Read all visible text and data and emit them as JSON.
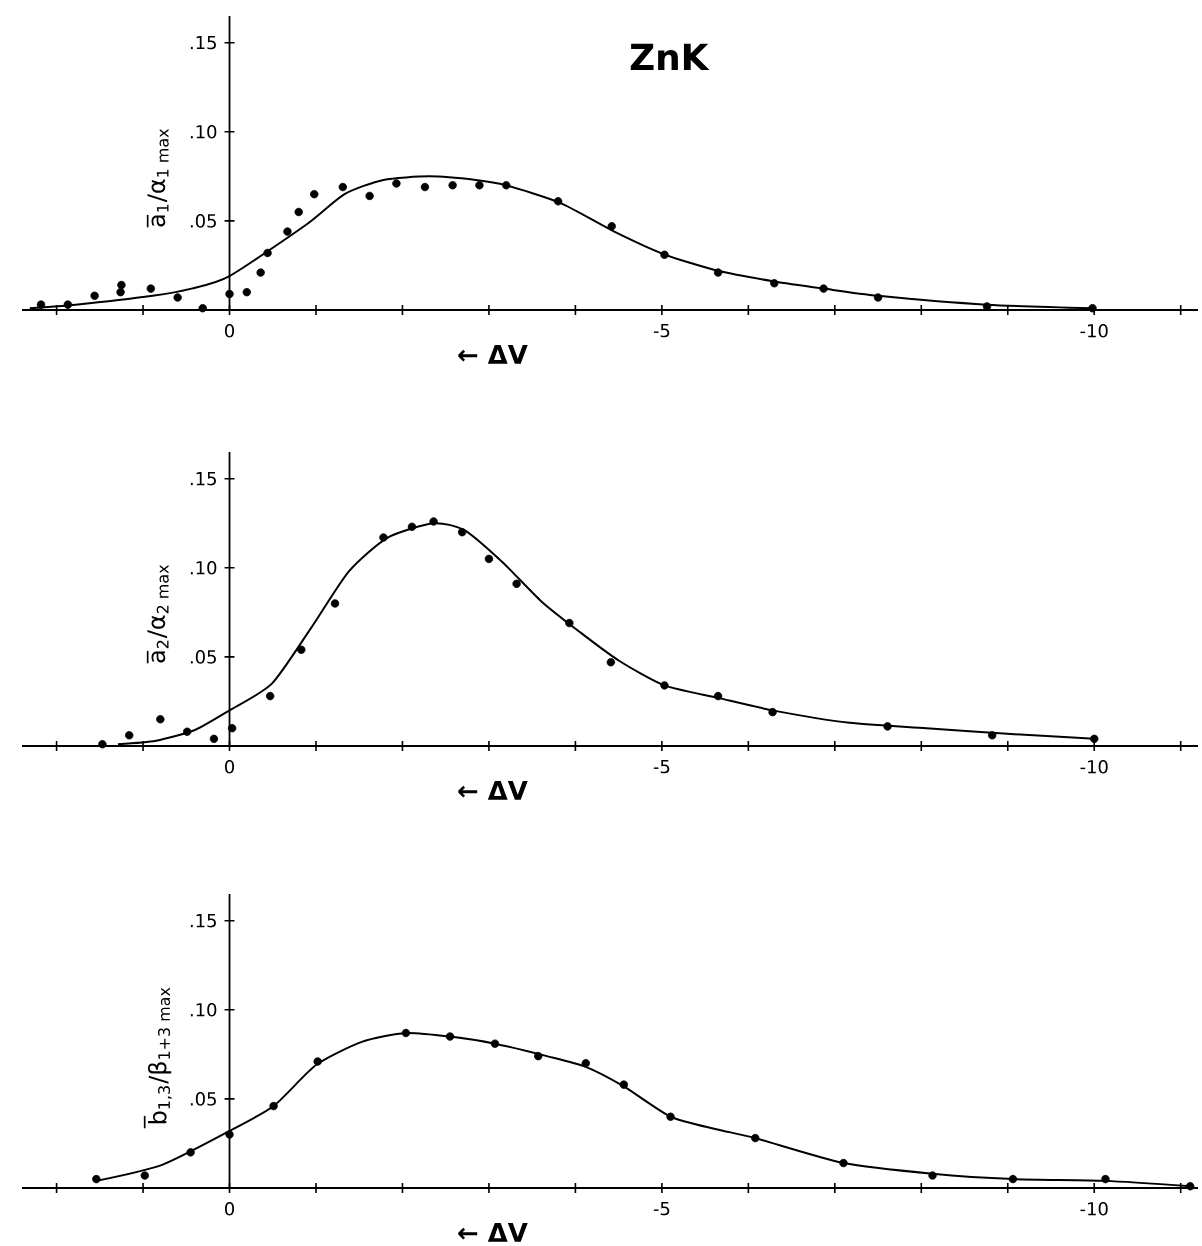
{
  "chart_data": [
    {
      "type": "scatter",
      "title": "ZnK",
      "xlabel": "← ΔV",
      "ylabel": "a̅$_{1}$/α$_{1 max}$",
      "xlim": [
        2.4,
        -11.2
      ],
      "ylim": [
        0,
        0.165
      ],
      "xticks": [
        {
          "value": 2,
          "label": null
        },
        {
          "value": 1,
          "label": null
        },
        0,
        {
          "value": -1,
          "label": null
        },
        {
          "value": -2,
          "label": null
        },
        {
          "value": -3,
          "label": null
        },
        {
          "value": -4,
          "label": null
        },
        -5,
        {
          "value": -6,
          "label": null
        },
        {
          "value": -7,
          "label": null
        },
        {
          "value": -8,
          "label": null
        },
        {
          "value": -9,
          "label": null
        },
        -10,
        {
          "value": -11,
          "label": null
        }
      ],
      "yticks": [
        {
          "value": 0.05,
          "label": ".05"
        },
        {
          "value": 0.1,
          "label": ".10"
        },
        {
          "value": 0.15,
          "label": ".15"
        }
      ],
      "series": [
        {
          "type": "scatter",
          "marker": "circle",
          "color": "#000000",
          "x": [
            2.18,
            1.87,
            1.56,
            1.26,
            1.25,
            0.91,
            0.6,
            0.31,
            0,
            -0.2,
            -0.36,
            -0.44,
            -0.67,
            -0.8,
            -0.98,
            -1.31,
            -1.62,
            -1.93,
            -2.26,
            -2.58,
            -2.89,
            -3.2,
            -3.8,
            -4.42,
            -5.03,
            -5.65,
            -6.3,
            -6.87,
            -7.5,
            -8.76,
            -9.98
          ],
          "values": [
            0.003,
            0.003,
            0.008,
            0.01,
            0.014,
            0.012,
            0.007,
            0.001,
            0.009,
            0.01,
            0.021,
            0.032,
            0.044,
            0.055,
            0.065,
            0.069,
            0.064,
            0.071,
            0.069,
            0.07,
            0.07,
            0.07,
            0.061,
            0.047,
            0.031,
            0.021,
            0.015,
            0.012,
            0.007,
            0.002,
            0.001
          ]
        },
        {
          "type": "line",
          "marker": "none",
          "color": "#000000",
          "x": [
            2.31,
            1.78,
            0.89,
            0.44,
            0,
            -0.89,
            -1.33,
            -1.78,
            -2.31,
            -2.85,
            -3.2,
            -3.83,
            -4.45,
            -5.04,
            -5.65,
            -6.3,
            -6.87,
            -7.5,
            -8.76,
            -9.98
          ],
          "values": [
            0.001,
            0.003,
            0.008,
            0.012,
            0.019,
            0.048,
            0.065,
            0.073,
            0.075,
            0.073,
            0.07,
            0.06,
            0.044,
            0.031,
            0.022,
            0.016,
            0.012,
            0.008,
            0.003,
            0.001
          ]
        }
      ]
    },
    {
      "type": "scatter",
      "xlabel": "← ΔV",
      "ylabel": "a̅$_{2}$/α$_{2 max}$",
      "xlim": [
        2.4,
        -11.2
      ],
      "ylim": [
        0,
        0.165
      ],
      "xticks": [
        {
          "value": 2,
          "label": null
        },
        {
          "value": 1,
          "label": null
        },
        0,
        {
          "value": -1,
          "label": null
        },
        {
          "value": -2,
          "label": null
        },
        {
          "value": -3,
          "label": null
        },
        {
          "value": -4,
          "label": null
        },
        -5,
        {
          "value": -6,
          "label": null
        },
        {
          "value": -7,
          "label": null
        },
        {
          "value": -8,
          "label": null
        },
        {
          "value": -9,
          "label": null
        },
        -10,
        {
          "value": -11,
          "label": null
        }
      ],
      "yticks": [
        {
          "value": 0.05,
          "label": ".05"
        },
        {
          "value": 0.1,
          "label": ".10"
        },
        {
          "value": 0.15,
          "label": ".15"
        }
      ],
      "series": [
        {
          "type": "scatter",
          "marker": "circle",
          "color": "#000000",
          "x": [
            1.47,
            1.16,
            0.8,
            0.49,
            0.18,
            -0.03,
            -0.47,
            -0.83,
            -1.22,
            -1.78,
            -2.11,
            -2.36,
            -2.69,
            -3.0,
            -3.32,
            -3.93,
            -4.41,
            -5.03,
            -5.65,
            -6.28,
            -7.61,
            -8.82,
            -10.0
          ],
          "values": [
            0.001,
            0.006,
            0.015,
            0.008,
            0.004,
            0.01,
            0.028,
            0.054,
            0.08,
            0.117,
            0.123,
            0.126,
            0.12,
            0.105,
            0.091,
            0.069,
            0.047,
            0.034,
            0.028,
            0.019,
            0.011,
            0.006,
            0.004
          ]
        },
        {
          "type": "line",
          "marker": "none",
          "color": "#000000",
          "x": [
            1.29,
            0.85,
            0.4,
            0,
            -0.49,
            -0.94,
            -1.38,
            -1.83,
            -2.36,
            -2.72,
            -3.16,
            -3.61,
            -4.05,
            -4.5,
            -5.03,
            -5.65,
            -6.28,
            -7.17,
            -8.06,
            -8.95,
            -10.0
          ],
          "values": [
            0.001,
            0.003,
            0.009,
            0.02,
            0.035,
            0.066,
            0.098,
            0.117,
            0.125,
            0.121,
            0.103,
            0.081,
            0.064,
            0.048,
            0.034,
            0.027,
            0.02,
            0.013,
            0.01,
            0.007,
            0.004
          ]
        }
      ]
    },
    {
      "type": "scatter",
      "xlabel": "← ΔV",
      "ylabel": "b̅$_{1,3}$/β$_{1+3 max}$",
      "xlim": [
        2.4,
        -11.2
      ],
      "ylim": [
        0,
        0.165
      ],
      "xticks": [
        {
          "value": 2,
          "label": null
        },
        {
          "value": 1,
          "label": null
        },
        0,
        {
          "value": -1,
          "label": null
        },
        {
          "value": -2,
          "label": null
        },
        {
          "value": -3,
          "label": null
        },
        {
          "value": -4,
          "label": null
        },
        -5,
        {
          "value": -6,
          "label": null
        },
        {
          "value": -7,
          "label": null
        },
        {
          "value": -8,
          "label": null
        },
        {
          "value": -9,
          "label": null
        },
        -10,
        {
          "value": -11,
          "label": null
        }
      ],
      "yticks": [
        {
          "value": 0.05,
          "label": ".05"
        },
        {
          "value": 0.1,
          "label": ".10"
        },
        {
          "value": 0.15,
          "label": ".15"
        }
      ],
      "series": [
        {
          "type": "scatter",
          "marker": "circle",
          "color": "#000000",
          "x": [
            1.54,
            0.98,
            0.45,
            0,
            -0.51,
            -1.02,
            -2.04,
            -2.55,
            -3.07,
            -3.57,
            -4.12,
            -4.56,
            -5.1,
            -6.08,
            -7.1,
            -8.13,
            -9.06,
            -10.13,
            -11.11
          ],
          "values": [
            0.005,
            0.007,
            0.02,
            0.03,
            0.046,
            0.071,
            0.087,
            0.085,
            0.081,
            0.074,
            0.07,
            0.058,
            0.04,
            0.028,
            0.014,
            0.007,
            0.005,
            0.005,
            0.001
          ]
        },
        {
          "type": "line",
          "marker": "none",
          "color": "#000000",
          "x": [
            1.54,
            0.78,
            0,
            -0.51,
            -1.0,
            -1.53,
            -2.04,
            -2.55,
            -3.07,
            -3.67,
            -4.12,
            -4.56,
            -5.1,
            -5.63,
            -6.08,
            -7.1,
            -8.13,
            -9.06,
            -10.13,
            -11.11
          ],
          "values": [
            0.004,
            0.013,
            0.032,
            0.046,
            0.069,
            0.082,
            0.087,
            0.085,
            0.081,
            0.074,
            0.068,
            0.057,
            0.04,
            0.033,
            0.028,
            0.014,
            0.008,
            0.005,
            0.004,
            0.001
          ]
        }
      ]
    }
  ]
}
